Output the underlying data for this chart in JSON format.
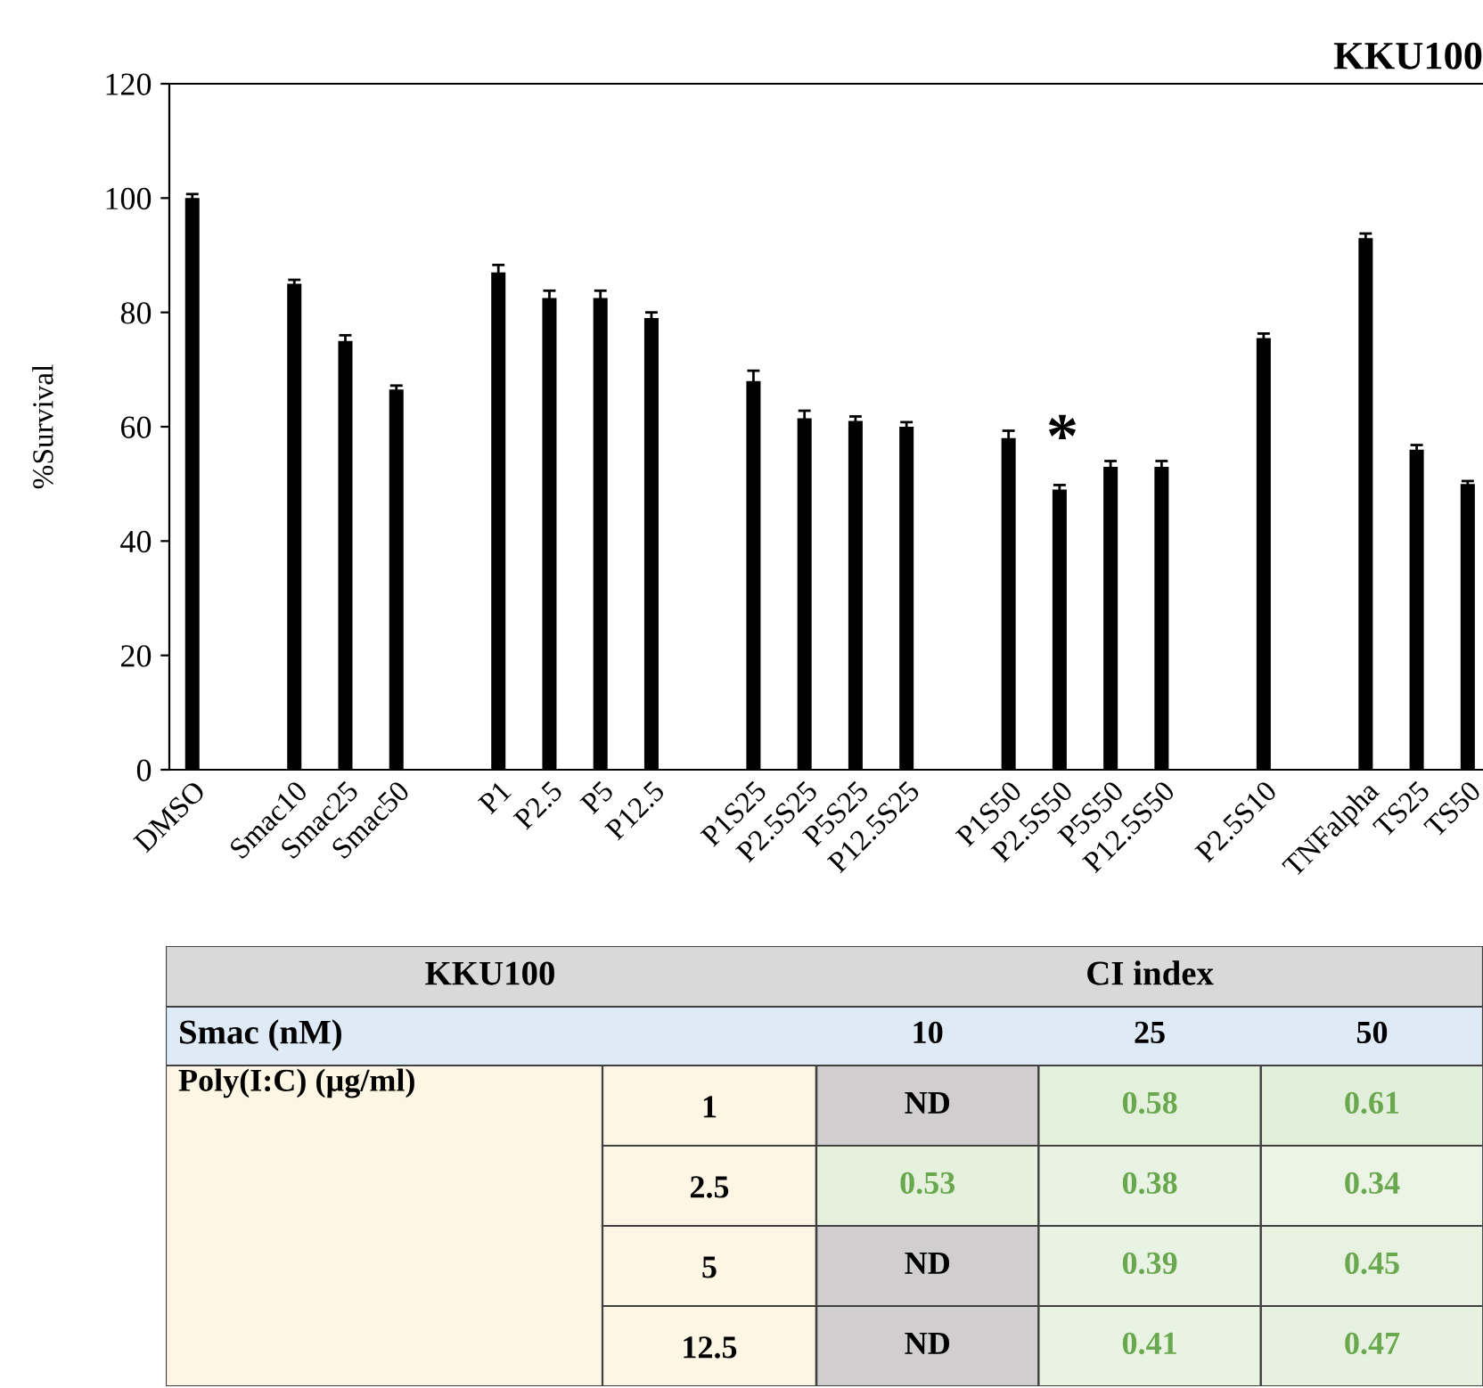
{
  "chart_data": [
    {
      "type": "bar",
      "title": "KKU100",
      "ylabel": "%Survival",
      "categories": [
        "DMSO",
        null,
        "Smac10",
        "Smac25",
        "Smac50",
        null,
        "P1",
        "P2.5",
        "P5",
        "P12.5",
        null,
        "P1S25",
        "P2.5S25",
        "P5S25",
        "P12.5S25",
        null,
        "P1S50",
        "P2.5S50",
        "P5S50",
        "P12.5S50",
        null,
        "P2.5S10",
        null,
        "TNFalpha",
        "TS25",
        "TS50"
      ],
      "values": [
        100,
        null,
        85,
        75,
        66.5,
        null,
        87,
        82.5,
        82.5,
        79,
        null,
        68,
        61.5,
        61,
        60,
        null,
        58,
        49,
        53,
        53,
        null,
        75.5,
        null,
        93,
        56,
        50
      ],
      "errors": [
        0.7,
        null,
        0.7,
        1,
        0.7,
        null,
        1.3,
        1.3,
        1.3,
        1,
        null,
        1.8,
        1.3,
        0.8,
        0.8,
        null,
        1.3,
        0.8,
        1,
        1,
        null,
        0.8,
        null,
        0.8,
        0.8,
        0.5
      ],
      "color": "#000000",
      "ylim": [
        0,
        120
      ],
      "yticks": [
        0,
        20,
        40,
        60,
        80,
        100,
        120
      ],
      "grid": false,
      "annotations": [
        "*"
      ]
    },
    {
      "type": "heatmap",
      "title": "CI index",
      "ylabel": "Poly(I:C) (µg/ml)",
      "categories": [
        "10",
        "25",
        "50"
      ],
      "y_categories": [
        "1",
        "2.5",
        "5",
        "12.5"
      ],
      "cells": [
        [
          null,
          0.58,
          0.61
        ],
        [
          0.53,
          0.38,
          0.34
        ],
        [
          null,
          0.39,
          0.45
        ],
        [
          null,
          0.41,
          0.47
        ]
      ],
      "cell_labels": [
        [
          "ND",
          "0.58",
          "0.61"
        ],
        [
          "0.53",
          "0.38",
          "0.34"
        ],
        [
          "ND",
          "0.39",
          "0.45"
        ],
        [
          "ND",
          "0.41",
          "0.47"
        ]
      ],
      "colors": [
        "#e2efda",
        "#d0cece",
        "#6aa84f"
      ],
      "annotations": [
        "KKU100",
        "Smac (nM)"
      ]
    }
  ]
}
